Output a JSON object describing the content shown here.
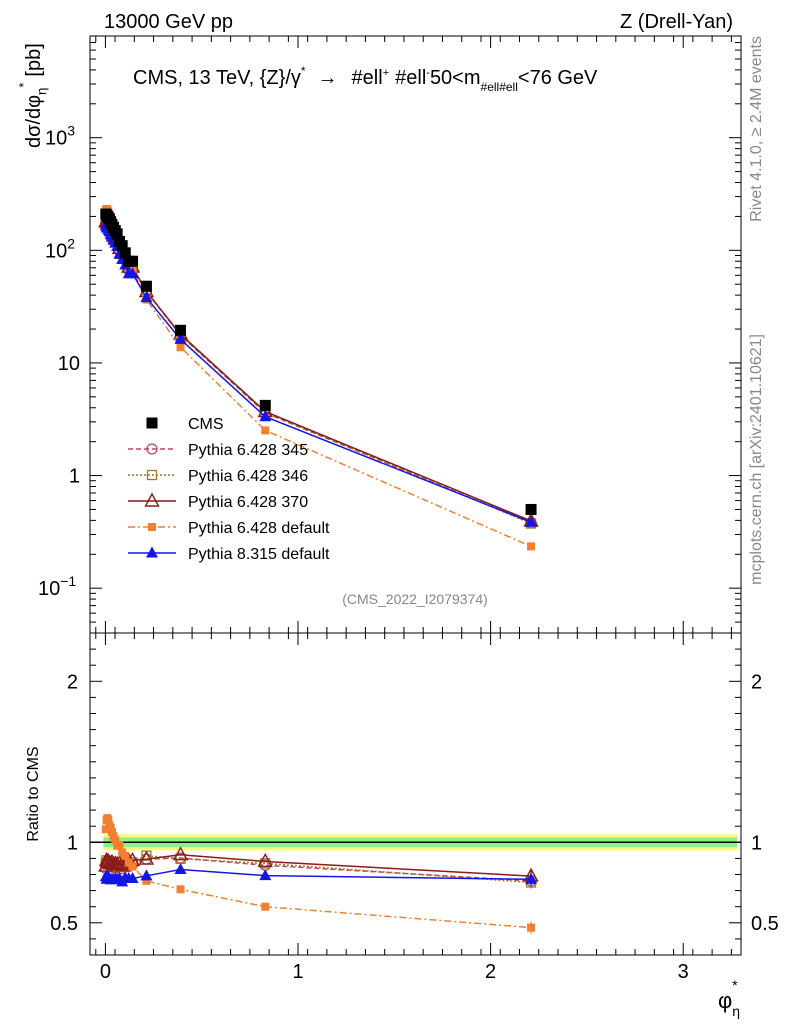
{
  "header": {
    "energy_label": "13000 GeV pp",
    "process_label": "Z (Drell-Yan)"
  },
  "side_labels": {
    "rivet": "Rivet 4.1.0, ≥ 2.4M events",
    "mcplots": "mcplots.cern.ch [arXiv:2401.10621]"
  },
  "chart_data": {
    "type": "line",
    "title_parts": {
      "prefix": "CMS, 13 TeV, {Z}/γ",
      "star": "*",
      "arrow": "→",
      "leptons_a": "#ell",
      "plus": "+",
      "leptons_b": "#ell",
      "minus": "-",
      "cut_lo": "50<m",
      "cut_sub": "#ell#ell",
      "cut_hi": "<76 GeV"
    },
    "analysis_id": "(CMS_2022_I2079374)",
    "ylabel": {
      "main": "dσ/dφ",
      "sub": "η",
      "sup": "*",
      "unit": "[pb]"
    },
    "ratio_ylabel": "Ratio to CMS",
    "xlabel": {
      "main": "φ",
      "sub": "η",
      "sup": "*"
    },
    "xlim": [
      -0.08,
      3.3
    ],
    "ylim_log": [
      0.04,
      8000
    ],
    "ratio_ylim": [
      0.3,
      2.3
    ],
    "x_ticks": [
      {
        "v": 0,
        "label": "0"
      },
      {
        "v": 1,
        "label": "1"
      },
      {
        "v": 2,
        "label": "2"
      },
      {
        "v": 3,
        "label": "3"
      }
    ],
    "y_ticks": [
      {
        "v": 0.1,
        "base": "10",
        "exp": "−1"
      },
      {
        "v": 1,
        "base": "1",
        "exp": ""
      },
      {
        "v": 10,
        "base": "10",
        "exp": ""
      },
      {
        "v": 100,
        "base": "10",
        "exp": "2"
      },
      {
        "v": 1000,
        "base": "10",
        "exp": "3"
      }
    ],
    "ratio_ticks": [
      {
        "v": 0.5,
        "label": "0.5"
      },
      {
        "v": 1,
        "label": "1"
      },
      {
        "v": 2,
        "label": "2"
      }
    ],
    "x": [
      0.002,
      0.006,
      0.01,
      0.015,
      0.021,
      0.027,
      0.034,
      0.042,
      0.051,
      0.061,
      0.073,
      0.087,
      0.103,
      0.121,
      0.141,
      0.213,
      0.39,
      0.83,
      2.21
    ],
    "band": {
      "inner": 0.03,
      "outer": 0.05
    },
    "series": [
      {
        "name": "CMS",
        "color": "#000000",
        "marker": "square-filled",
        "line": "none",
        "values": [
          210,
          205,
          200,
          195,
          190,
          180,
          170,
          160,
          150,
          140,
          120,
          110,
          95,
          80,
          80,
          48,
          19.5,
          4.2,
          0.5
        ]
      },
      {
        "name": "Pythia 6.428 345",
        "color": "#b54a5e",
        "marker": "circle-open",
        "line": "dashed",
        "values": [
          176,
          180,
          174,
          170,
          163,
          155,
          146,
          135,
          127,
          118,
          102,
          92,
          82,
          68,
          69,
          43,
          17.6,
          3.6,
          0.38
        ]
      },
      {
        "name": "Pythia 6.428 346",
        "color": "#9c7a2c",
        "marker": "square-open",
        "line": "dotted",
        "values": [
          183,
          182,
          175,
          171,
          165,
          155,
          147,
          136,
          128,
          119,
          103,
          93,
          84,
          69,
          70,
          44,
          17.5,
          3.65,
          0.375
        ]
      },
      {
        "name": "Pythia 6.428 370",
        "color": "#8b1a1a",
        "marker": "triangle-open",
        "line": "solid",
        "values": [
          179,
          182,
          176,
          172,
          165,
          156,
          149,
          138,
          130,
          121,
          104,
          94,
          85,
          71,
          71,
          43,
          18.0,
          3.7,
          0.395
        ]
      },
      {
        "name": "Pythia 6.428 default",
        "color": "#f47f30",
        "marker": "square-filled-small",
        "line": "dashdot",
        "values": [
          227,
          233,
          230,
          222,
          210,
          196,
          181,
          166,
          152,
          137,
          118,
          103,
          87,
          70,
          68,
          36.5,
          13.8,
          2.52,
          0.235
        ]
      },
      {
        "name": "Pythia 8.315 default",
        "color": "#1515e8",
        "marker": "triangle-filled",
        "line": "solid",
        "values": [
          165,
          158,
          158,
          152,
          147,
          138,
          131,
          123,
          116,
          108,
          93,
          83,
          74,
          62,
          62,
          38,
          16.2,
          3.33,
          0.385
        ]
      }
    ]
  }
}
